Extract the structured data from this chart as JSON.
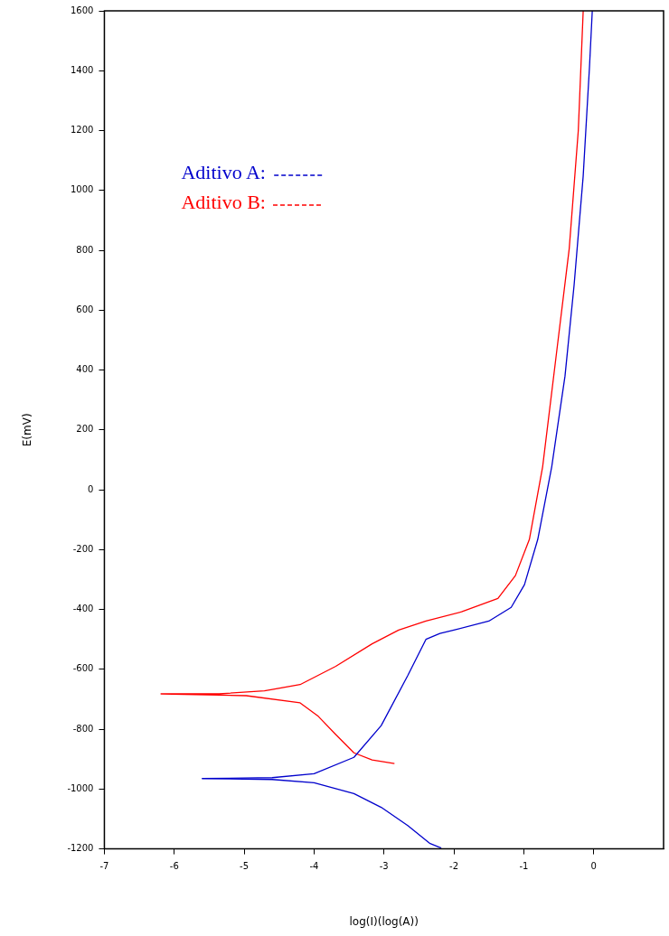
{
  "chart_data": {
    "type": "line",
    "xlabel": "log(I)(log(A))",
    "ylabel": "E(mV)",
    "xlim": [
      -7,
      1
    ],
    "xticks": [
      -7,
      -6,
      -5,
      -4,
      -3,
      -2,
      -1,
      0
    ],
    "ylim": [
      -1200,
      1600
    ],
    "yticks": [
      -1200,
      -1000,
      -800,
      -600,
      -400,
      -200,
      0,
      200,
      400,
      600,
      800,
      1000,
      1200,
      1400,
      1600
    ],
    "grid": false,
    "legend": "top left",
    "marker": "none",
    "line_style": "solid",
    "series": [
      {
        "name": "Aditivo A:",
        "color": "#0000cc",
        "x": [
          -2.18,
          -2.34,
          -2.66,
          -3.04,
          -3.43,
          -4,
          -4.6,
          -5.6,
          -4.6,
          -4,
          -3.43,
          -3.04,
          -2.66,
          -2.4,
          -2.2,
          -2,
          -1.5,
          -1.18,
          -0.99,
          -0.8,
          -0.6,
          -0.41,
          -0.28,
          -0.15,
          -0.06,
          -0.02
        ],
        "values": [
          -1197,
          -1182,
          -1122,
          -1061,
          -1015,
          -979,
          -968,
          -965,
          -962,
          -949,
          -894,
          -788,
          -621,
          -500,
          -480,
          -469,
          -439,
          -393,
          -317,
          -166,
          77,
          380,
          684,
          1048,
          1412,
          1600
        ]
      },
      {
        "name": "Aditivo B:",
        "color": "#ff0000",
        "x": [
          -2.85,
          -3.17,
          -3.43,
          -3.69,
          -3.94,
          -4.2,
          -4.97,
          -6.19,
          -5.36,
          -4.71,
          -4.2,
          -3.69,
          -3.17,
          -2.79,
          -2.4,
          -1.89,
          -1.37,
          -1.12,
          -0.92,
          -0.73,
          -0.54,
          -0.35,
          -0.22,
          -0.15
        ],
        "values": [
          -915,
          -903,
          -879,
          -818,
          -757,
          -712,
          -688,
          -682,
          -682,
          -672,
          -651,
          -590,
          -515,
          -469,
          -439,
          -408,
          -363,
          -287,
          -166,
          77,
          441,
          805,
          1200,
          1600
        ]
      }
    ]
  }
}
